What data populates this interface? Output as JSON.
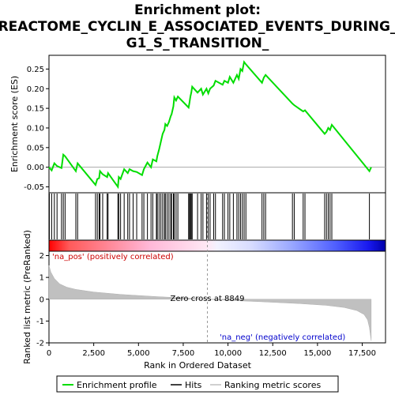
{
  "chart_data": {
    "type": "line",
    "title_line1": "Enrichment plot:",
    "title_line2": "REACTOME_CYCLIN_E_ASSOCIATED_EVENTS_DURING_",
    "title_line3": "G1_S_TRANSITION_",
    "es_panel": {
      "ylabel": "Enrichment score (ES)",
      "ylim": [
        -0.065,
        0.285
      ],
      "yticks": [
        -0.05,
        0.0,
        0.05,
        0.1,
        0.15,
        0.2,
        0.25
      ],
      "ytick_labels": [
        "-0.05",
        "0.00",
        "0.05",
        "0.10",
        "0.15",
        "0.20",
        "0.25"
      ],
      "series": [
        {
          "name": "Enrichment profile",
          "color": "#00dd00",
          "points": [
            [
              0,
              0.0
            ],
            [
              150,
              -0.008
            ],
            [
              300,
              0.01
            ],
            [
              450,
              0.003
            ],
            [
              700,
              -0.002
            ],
            [
              800,
              0.032
            ],
            [
              900,
              0.028
            ],
            [
              1500,
              -0.01
            ],
            [
              1600,
              0.01
            ],
            [
              2600,
              -0.045
            ],
            [
              2700,
              -0.03
            ],
            [
              2800,
              -0.028
            ],
            [
              2850,
              -0.01
            ],
            [
              3000,
              -0.018
            ],
            [
              3250,
              -0.025
            ],
            [
              3300,
              -0.015
            ],
            [
              3850,
              -0.05
            ],
            [
              3900,
              -0.025
            ],
            [
              4000,
              -0.03
            ],
            [
              4200,
              -0.005
            ],
            [
              4400,
              -0.015
            ],
            [
              4500,
              -0.005
            ],
            [
              4700,
              -0.01
            ],
            [
              4900,
              -0.012
            ],
            [
              5200,
              -0.02
            ],
            [
              5300,
              -0.005
            ],
            [
              5500,
              0.012
            ],
            [
              5700,
              0.0
            ],
            [
              5800,
              0.02
            ],
            [
              6000,
              0.015
            ],
            [
              6050,
              0.028
            ],
            [
              6150,
              0.045
            ],
            [
              6250,
              0.065
            ],
            [
              6350,
              0.085
            ],
            [
              6450,
              0.095
            ],
            [
              6500,
              0.11
            ],
            [
              6600,
              0.105
            ],
            [
              6700,
              0.115
            ],
            [
              6800,
              0.13
            ],
            [
              6850,
              0.135
            ],
            [
              6950,
              0.155
            ],
            [
              7000,
              0.178
            ],
            [
              7100,
              0.17
            ],
            [
              7200,
              0.18
            ],
            [
              7800,
              0.152
            ],
            [
              7850,
              0.165
            ],
            [
              7900,
              0.18
            ],
            [
              7950,
              0.19
            ],
            [
              8000,
              0.205
            ],
            [
              8300,
              0.19
            ],
            [
              8500,
              0.2
            ],
            [
              8600,
              0.185
            ],
            [
              8800,
              0.2
            ],
            [
              8900,
              0.188
            ],
            [
              9000,
              0.2
            ],
            [
              9200,
              0.208
            ],
            [
              9300,
              0.22
            ],
            [
              9700,
              0.21
            ],
            [
              9800,
              0.22
            ],
            [
              10000,
              0.215
            ],
            [
              10100,
              0.23
            ],
            [
              10300,
              0.215
            ],
            [
              10500,
              0.235
            ],
            [
              10600,
              0.225
            ],
            [
              10700,
              0.25
            ],
            [
              10800,
              0.245
            ],
            [
              10900,
              0.268
            ],
            [
              11000,
              0.262
            ],
            [
              11900,
              0.215
            ],
            [
              12000,
              0.228
            ],
            [
              12100,
              0.235
            ],
            [
              13600,
              0.162
            ],
            [
              13700,
              0.158
            ],
            [
              14200,
              0.142
            ],
            [
              14300,
              0.145
            ],
            [
              15400,
              0.085
            ],
            [
              15500,
              0.09
            ],
            [
              15600,
              0.1
            ],
            [
              15700,
              0.095
            ],
            [
              15800,
              0.108
            ],
            [
              17900,
              -0.01
            ],
            [
              18000,
              0.0
            ]
          ]
        }
      ]
    },
    "hits": [
      20,
      150,
      300,
      450,
      700,
      800,
      900,
      1500,
      1600,
      2600,
      2700,
      2800,
      2850,
      3000,
      3250,
      3300,
      3850,
      3900,
      4000,
      4200,
      4400,
      4500,
      4700,
      4900,
      5200,
      5300,
      5500,
      5700,
      5800,
      6000,
      6050,
      6150,
      6250,
      6350,
      6450,
      6500,
      6600,
      6700,
      6800,
      6850,
      6950,
      7000,
      7100,
      7200,
      7800,
      7850,
      7900,
      7950,
      8000,
      8300,
      8500,
      8600,
      8800,
      8900,
      9000,
      9200,
      9300,
      9700,
      9800,
      10000,
      10100,
      10300,
      10500,
      10600,
      10700,
      10800,
      10900,
      11000,
      11900,
      12000,
      12100,
      13600,
      13700,
      14200,
      14300,
      15400,
      15500,
      15600,
      15700,
      15800,
      17900
    ],
    "ranked_panel": {
      "ylabel": "Ranked list metric (PreRanked)",
      "ylim": [
        -2,
        2.2
      ],
      "yticks": [
        -2,
        -1,
        0,
        1,
        2
      ],
      "ytick_labels": [
        "-2",
        "-1",
        "0",
        "1",
        "2"
      ],
      "curve": [
        [
          0,
          1.55
        ],
        [
          100,
          1.25
        ],
        [
          300,
          0.95
        ],
        [
          600,
          0.7
        ],
        [
          1000,
          0.55
        ],
        [
          1500,
          0.45
        ],
        [
          2500,
          0.33
        ],
        [
          4000,
          0.22
        ],
        [
          6000,
          0.12
        ],
        [
          8000,
          0.04
        ],
        [
          8849,
          0.0
        ],
        [
          10000,
          -0.05
        ],
        [
          12000,
          -0.12
        ],
        [
          14000,
          -0.2
        ],
        [
          15500,
          -0.28
        ],
        [
          16500,
          -0.38
        ],
        [
          17200,
          -0.52
        ],
        [
          17600,
          -0.7
        ],
        [
          17800,
          -0.95
        ],
        [
          17900,
          -1.3
        ],
        [
          18000,
          -1.9
        ]
      ]
    },
    "xlim": [
      0,
      18800
    ],
    "xticks": [
      0,
      2500,
      5000,
      7500,
      10000,
      12500,
      15000,
      17500
    ],
    "xtick_labels": [
      "0",
      "2,500",
      "5,000",
      "7,500",
      "10,000",
      "12,500",
      "15,000",
      "17,500"
    ],
    "xlabel": "Rank in Ordered Dataset",
    "zero_cross": 8849,
    "zero_cross_label": "Zero cross at 8849",
    "pos_label": "'na_pos' (positively correlated)",
    "neg_label": "'na_neg' (negatively correlated)",
    "legend": [
      {
        "label": "Enrichment profile",
        "color": "#00dd00"
      },
      {
        "label": "Hits",
        "color": "#000000"
      },
      {
        "label": "Ranking metric scores",
        "color": "#c0c0c0"
      }
    ]
  }
}
